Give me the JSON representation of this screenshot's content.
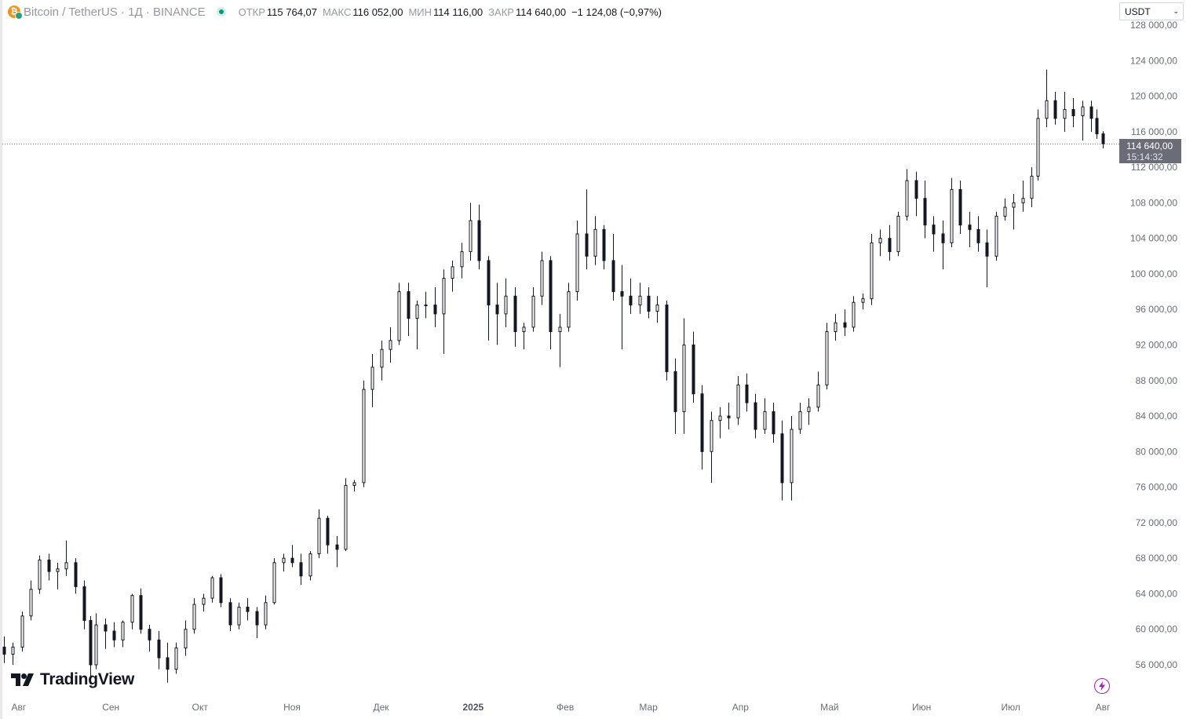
{
  "header": {
    "symbol_title": "Bitcoin / TetherUS · 1Д · BINANCE",
    "ohlc": [
      {
        "label": "ОТКР",
        "value": "115 764,07"
      },
      {
        "label": "МАКС",
        "value": "116 052,00"
      },
      {
        "label": "МИН",
        "value": "114 116,00"
      },
      {
        "label": "ЗАКР",
        "value": "114 640,00"
      }
    ],
    "change": "−1 124,08 (−0,97%)"
  },
  "currency": {
    "selected": "USDT"
  },
  "price_label": {
    "price": "114 640,00",
    "countdown": "15:14:32"
  },
  "logo": {
    "text": "TradingView"
  },
  "icons": {
    "symbol": "bitcoin-tether-icon",
    "status": "market-open-dot-icon",
    "dropdown": "chevron-down-icon",
    "logo": "tradingview-logo-icon",
    "lightning": "lightning-icon"
  },
  "colors": {
    "candle": "#131722",
    "background": "#ffffff",
    "axis_text": "#6a6d78",
    "price_label_bg": "#6a6d78",
    "lightning": "#9c27b0",
    "bitcoin": "#f7931a",
    "tether": "#26a17b",
    "status_green": "#089981"
  },
  "chart_data": {
    "type": "candlestick",
    "timeframe": "1D",
    "xlabel": "",
    "ylabel": "",
    "ylim": [
      54000,
      128000
    ],
    "y_ticks": [
      {
        "value": 56000,
        "label": "56 000,00"
      },
      {
        "value": 60000,
        "label": "60 000,00"
      },
      {
        "value": 64000,
        "label": "64 000,00"
      },
      {
        "value": 68000,
        "label": "68 000,00"
      },
      {
        "value": 72000,
        "label": "72 000,00"
      },
      {
        "value": 76000,
        "label": "76 000,00"
      },
      {
        "value": 80000,
        "label": "80 000,00"
      },
      {
        "value": 84000,
        "label": "84 000,00"
      },
      {
        "value": 88000,
        "label": "88 000,00"
      },
      {
        "value": 92000,
        "label": "92 000,00"
      },
      {
        "value": 96000,
        "label": "96 000,00"
      },
      {
        "value": 100000,
        "label": "100 000,00"
      },
      {
        "value": 104000,
        "label": "104 000,00"
      },
      {
        "value": 108000,
        "label": "108 000,00"
      },
      {
        "value": 112000,
        "label": "112 000,00"
      },
      {
        "value": 116000,
        "label": "116 000,00"
      },
      {
        "value": 120000,
        "label": "120 000,00"
      },
      {
        "value": 124000,
        "label": "124 000,00"
      },
      {
        "value": 128000,
        "label": "128 000,00"
      }
    ],
    "x_ticks": [
      {
        "day": 5,
        "label": "Авг"
      },
      {
        "day": 36,
        "label": "Сен"
      },
      {
        "day": 66,
        "label": "Окт"
      },
      {
        "day": 97,
        "label": "Ноя"
      },
      {
        "day": 127,
        "label": "Дек"
      },
      {
        "day": 158,
        "label": "2025",
        "bold": true
      },
      {
        "day": 189,
        "label": "Фев"
      },
      {
        "day": 217,
        "label": "Мар"
      },
      {
        "day": 248,
        "label": "Апр"
      },
      {
        "day": 278,
        "label": "Май"
      },
      {
        "day": 309,
        "label": "Июн"
      },
      {
        "day": 339,
        "label": "Июл"
      },
      {
        "day": 370,
        "label": "Авг"
      }
    ],
    "last_price": 114640,
    "last_day": 370,
    "candles": [
      {
        "day": 0,
        "o": 58000,
        "h": 59200,
        "l": 56200,
        "c": 57200
      },
      {
        "day": 3,
        "o": 57200,
        "h": 58500,
        "l": 56000,
        "c": 58000
      },
      {
        "day": 6,
        "o": 58000,
        "h": 62000,
        "l": 57500,
        "c": 61500
      },
      {
        "day": 9,
        "o": 61500,
        "h": 65500,
        "l": 61000,
        "c": 64500
      },
      {
        "day": 12,
        "o": 64500,
        "h": 68300,
        "l": 64000,
        "c": 67800
      },
      {
        "day": 15,
        "o": 67800,
        "h": 68500,
        "l": 65500,
        "c": 66500
      },
      {
        "day": 18,
        "o": 66500,
        "h": 67500,
        "l": 64500,
        "c": 66800
      },
      {
        "day": 21,
        "o": 66800,
        "h": 70000,
        "l": 66000,
        "c": 67500
      },
      {
        "day": 24,
        "o": 67500,
        "h": 68000,
        "l": 64000,
        "c": 64800
      },
      {
        "day": 27,
        "o": 64800,
        "h": 65500,
        "l": 60000,
        "c": 61000
      },
      {
        "day": 29,
        "o": 61000,
        "h": 61500,
        "l": 54500,
        "c": 56000
      },
      {
        "day": 31,
        "o": 56000,
        "h": 61800,
        "l": 55500,
        "c": 60500
      },
      {
        "day": 34,
        "o": 60500,
        "h": 61200,
        "l": 57800,
        "c": 59800
      },
      {
        "day": 37,
        "o": 59800,
        "h": 60800,
        "l": 58000,
        "c": 58800
      },
      {
        "day": 40,
        "o": 58800,
        "h": 61000,
        "l": 58000,
        "c": 60800
      },
      {
        "day": 43,
        "o": 60800,
        "h": 64000,
        "l": 60000,
        "c": 63800
      },
      {
        "day": 46,
        "o": 63800,
        "h": 64600,
        "l": 59500,
        "c": 60000
      },
      {
        "day": 49,
        "o": 60000,
        "h": 60500,
        "l": 57500,
        "c": 58800
      },
      {
        "day": 52,
        "o": 58800,
        "h": 59800,
        "l": 55500,
        "c": 56800
      },
      {
        "day": 55,
        "o": 56800,
        "h": 58500,
        "l": 54000,
        "c": 55500
      },
      {
        "day": 58,
        "o": 55500,
        "h": 58500,
        "l": 55000,
        "c": 57900
      },
      {
        "day": 61,
        "o": 57900,
        "h": 61000,
        "l": 57000,
        "c": 60000
      },
      {
        "day": 64,
        "o": 60000,
        "h": 63500,
        "l": 59500,
        "c": 62800
      },
      {
        "day": 67,
        "o": 62800,
        "h": 64000,
        "l": 62000,
        "c": 63500
      },
      {
        "day": 70,
        "o": 63500,
        "h": 66000,
        "l": 63000,
        "c": 65800
      },
      {
        "day": 73,
        "o": 65800,
        "h": 66200,
        "l": 62500,
        "c": 63000
      },
      {
        "day": 76,
        "o": 63000,
        "h": 63500,
        "l": 59800,
        "c": 60500
      },
      {
        "day": 79,
        "o": 60500,
        "h": 63000,
        "l": 60000,
        "c": 62500
      },
      {
        "day": 82,
        "o": 62500,
        "h": 63500,
        "l": 61000,
        "c": 62000
      },
      {
        "day": 85,
        "o": 62000,
        "h": 62500,
        "l": 59000,
        "c": 60500
      },
      {
        "day": 88,
        "o": 60500,
        "h": 63800,
        "l": 60000,
        "c": 63000
      },
      {
        "day": 91,
        "o": 63000,
        "h": 68000,
        "l": 62800,
        "c": 67500
      },
      {
        "day": 94,
        "o": 67500,
        "h": 68500,
        "l": 66500,
        "c": 68000
      },
      {
        "day": 97,
        "o": 68000,
        "h": 69500,
        "l": 67000,
        "c": 67500
      },
      {
        "day": 100,
        "o": 67500,
        "h": 68500,
        "l": 65000,
        "c": 66000
      },
      {
        "day": 103,
        "o": 66000,
        "h": 68800,
        "l": 65500,
        "c": 68500
      },
      {
        "day": 106,
        "o": 68500,
        "h": 73500,
        "l": 68000,
        "c": 72500
      },
      {
        "day": 109,
        "o": 72500,
        "h": 72800,
        "l": 68500,
        "c": 69500
      },
      {
        "day": 112,
        "o": 69500,
        "h": 70500,
        "l": 67000,
        "c": 69000
      },
      {
        "day": 115,
        "o": 69000,
        "h": 77000,
        "l": 68800,
        "c": 76200
      },
      {
        "day": 118,
        "o": 76200,
        "h": 76800,
        "l": 75500,
        "c": 76500
      },
      {
        "day": 121,
        "o": 76500,
        "h": 88000,
        "l": 76000,
        "c": 87000
      },
      {
        "day": 124,
        "o": 87000,
        "h": 91000,
        "l": 85000,
        "c": 89500
      },
      {
        "day": 127,
        "o": 89500,
        "h": 92500,
        "l": 88000,
        "c": 91500
      },
      {
        "day": 130,
        "o": 91500,
        "h": 94000,
        "l": 90000,
        "c": 92500
      },
      {
        "day": 133,
        "o": 92500,
        "h": 99000,
        "l": 92000,
        "c": 98000
      },
      {
        "day": 136,
        "o": 98000,
        "h": 99000,
        "l": 93000,
        "c": 95000
      },
      {
        "day": 139,
        "o": 95000,
        "h": 97000,
        "l": 91500,
        "c": 96500
      },
      {
        "day": 142,
        "o": 96500,
        "h": 98000,
        "l": 95000,
        "c": 96500
      },
      {
        "day": 145,
        "o": 96500,
        "h": 98500,
        "l": 94000,
        "c": 95500
      },
      {
        "day": 148,
        "o": 95500,
        "h": 100500,
        "l": 91000,
        "c": 99500
      },
      {
        "day": 151,
        "o": 99500,
        "h": 101500,
        "l": 98000,
        "c": 100800
      },
      {
        "day": 154,
        "o": 100800,
        "h": 103500,
        "l": 99500,
        "c": 102500
      },
      {
        "day": 157,
        "o": 102500,
        "h": 108000,
        "l": 101500,
        "c": 106000
      },
      {
        "day": 160,
        "o": 106000,
        "h": 107800,
        "l": 100500,
        "c": 101500
      },
      {
        "day": 163,
        "o": 101500,
        "h": 102000,
        "l": 92500,
        "c": 96500
      },
      {
        "day": 166,
        "o": 96500,
        "h": 99000,
        "l": 92000,
        "c": 95500
      },
      {
        "day": 169,
        "o": 95500,
        "h": 99500,
        "l": 94000,
        "c": 97500
      },
      {
        "day": 172,
        "o": 97500,
        "h": 98500,
        "l": 91800,
        "c": 93500
      },
      {
        "day": 175,
        "o": 93500,
        "h": 94500,
        "l": 91500,
        "c": 94000
      },
      {
        "day": 178,
        "o": 94000,
        "h": 98500,
        "l": 93500,
        "c": 97500
      },
      {
        "day": 181,
        "o": 97500,
        "h": 102500,
        "l": 96500,
        "c": 101500
      },
      {
        "day": 184,
        "o": 101500,
        "h": 102000,
        "l": 91500,
        "c": 93500
      },
      {
        "day": 187,
        "o": 93500,
        "h": 95500,
        "l": 89500,
        "c": 94000
      },
      {
        "day": 190,
        "o": 94000,
        "h": 99000,
        "l": 93500,
        "c": 98000
      },
      {
        "day": 193,
        "o": 98000,
        "h": 106000,
        "l": 97000,
        "c": 104500
      },
      {
        "day": 196,
        "o": 104500,
        "h": 109500,
        "l": 100500,
        "c": 102000
      },
      {
        "day": 199,
        "o": 102000,
        "h": 106500,
        "l": 101000,
        "c": 105000
      },
      {
        "day": 202,
        "o": 105000,
        "h": 105500,
        "l": 100500,
        "c": 101500
      },
      {
        "day": 205,
        "o": 101500,
        "h": 104500,
        "l": 97000,
        "c": 98000
      },
      {
        "day": 208,
        "o": 98000,
        "h": 101000,
        "l": 91500,
        "c": 97500
      },
      {
        "day": 211,
        "o": 97500,
        "h": 99500,
        "l": 95500,
        "c": 96500
      },
      {
        "day": 214,
        "o": 96500,
        "h": 99000,
        "l": 95500,
        "c": 97500
      },
      {
        "day": 217,
        "o": 97500,
        "h": 98500,
        "l": 95000,
        "c": 95800
      },
      {
        "day": 220,
        "o": 95800,
        "h": 97500,
        "l": 94500,
        "c": 96500
      },
      {
        "day": 223,
        "o": 96500,
        "h": 97000,
        "l": 88000,
        "c": 89000
      },
      {
        "day": 226,
        "o": 89000,
        "h": 90500,
        "l": 82000,
        "c": 84500
      },
      {
        "day": 229,
        "o": 84500,
        "h": 95000,
        "l": 82000,
        "c": 92000
      },
      {
        "day": 232,
        "o": 92000,
        "h": 93500,
        "l": 85500,
        "c": 86500
      },
      {
        "day": 235,
        "o": 86500,
        "h": 87500,
        "l": 78000,
        "c": 80000
      },
      {
        "day": 238,
        "o": 80000,
        "h": 84500,
        "l": 76500,
        "c": 83500
      },
      {
        "day": 241,
        "o": 83500,
        "h": 85000,
        "l": 81500,
        "c": 84000
      },
      {
        "day": 244,
        "o": 84000,
        "h": 85500,
        "l": 82500,
        "c": 83800
      },
      {
        "day": 247,
        "o": 83800,
        "h": 88500,
        "l": 83000,
        "c": 87500
      },
      {
        "day": 250,
        "o": 87500,
        "h": 88800,
        "l": 84500,
        "c": 85500
      },
      {
        "day": 253,
        "o": 85500,
        "h": 86500,
        "l": 81500,
        "c": 82500
      },
      {
        "day": 256,
        "o": 82500,
        "h": 86000,
        "l": 82000,
        "c": 84500
      },
      {
        "day": 259,
        "o": 84500,
        "h": 85500,
        "l": 81000,
        "c": 82000
      },
      {
        "day": 262,
        "o": 82000,
        "h": 83500,
        "l": 74500,
        "c": 76500
      },
      {
        "day": 265,
        "o": 76500,
        "h": 84000,
        "l": 74500,
        "c": 82500
      },
      {
        "day": 268,
        "o": 82500,
        "h": 85500,
        "l": 82000,
        "c": 84500
      },
      {
        "day": 271,
        "o": 84500,
        "h": 86000,
        "l": 83000,
        "c": 85000
      },
      {
        "day": 274,
        "o": 85000,
        "h": 89000,
        "l": 84500,
        "c": 87500
      },
      {
        "day": 277,
        "o": 87500,
        "h": 94500,
        "l": 87000,
        "c": 93500
      },
      {
        "day": 280,
        "o": 93500,
        "h": 95500,
        "l": 92500,
        "c": 94500
      },
      {
        "day": 283,
        "o": 94500,
        "h": 96000,
        "l": 93000,
        "c": 94000
      },
      {
        "day": 286,
        "o": 94000,
        "h": 97500,
        "l": 93500,
        "c": 96800
      },
      {
        "day": 289,
        "o": 96800,
        "h": 97800,
        "l": 96000,
        "c": 97200
      },
      {
        "day": 292,
        "o": 97200,
        "h": 104500,
        "l": 96500,
        "c": 103500
      },
      {
        "day": 295,
        "o": 103500,
        "h": 105000,
        "l": 102000,
        "c": 104000
      },
      {
        "day": 298,
        "o": 104000,
        "h": 105500,
        "l": 101500,
        "c": 102500
      },
      {
        "day": 301,
        "o": 102500,
        "h": 107000,
        "l": 102000,
        "c": 106500
      },
      {
        "day": 304,
        "o": 106500,
        "h": 111800,
        "l": 106000,
        "c": 110500
      },
      {
        "day": 307,
        "o": 110500,
        "h": 111500,
        "l": 106500,
        "c": 108500
      },
      {
        "day": 310,
        "o": 108500,
        "h": 110500,
        "l": 104000,
        "c": 105500
      },
      {
        "day": 313,
        "o": 105500,
        "h": 106500,
        "l": 102500,
        "c": 104500
      },
      {
        "day": 316,
        "o": 104500,
        "h": 106000,
        "l": 100500,
        "c": 103500
      },
      {
        "day": 319,
        "o": 103500,
        "h": 110800,
        "l": 103000,
        "c": 109500
      },
      {
        "day": 322,
        "o": 109500,
        "h": 110500,
        "l": 104500,
        "c": 105500
      },
      {
        "day": 325,
        "o": 105500,
        "h": 107000,
        "l": 103000,
        "c": 105000
      },
      {
        "day": 328,
        "o": 105000,
        "h": 106500,
        "l": 102500,
        "c": 103500
      },
      {
        "day": 331,
        "o": 103500,
        "h": 105000,
        "l": 98500,
        "c": 102000
      },
      {
        "day": 334,
        "o": 102000,
        "h": 107000,
        "l": 101500,
        "c": 106500
      },
      {
        "day": 337,
        "o": 106500,
        "h": 108500,
        "l": 106000,
        "c": 107500
      },
      {
        "day": 340,
        "o": 107500,
        "h": 109000,
        "l": 105000,
        "c": 108000
      },
      {
        "day": 343,
        "o": 108000,
        "h": 110500,
        "l": 107000,
        "c": 108500
      },
      {
        "day": 346,
        "o": 108500,
        "h": 112000,
        "l": 107500,
        "c": 111000
      },
      {
        "day": 348,
        "o": 111000,
        "h": 118500,
        "l": 110500,
        "c": 117500
      },
      {
        "day": 351,
        "o": 117500,
        "h": 123000,
        "l": 116500,
        "c": 119500
      },
      {
        "day": 354,
        "o": 119500,
        "h": 120500,
        "l": 116800,
        "c": 117500
      },
      {
        "day": 357,
        "o": 117500,
        "h": 120500,
        "l": 116000,
        "c": 118500
      },
      {
        "day": 360,
        "o": 118500,
        "h": 119800,
        "l": 116500,
        "c": 117800
      },
      {
        "day": 363,
        "o": 117800,
        "h": 119500,
        "l": 115000,
        "c": 118800
      },
      {
        "day": 366,
        "o": 118800,
        "h": 119500,
        "l": 116000,
        "c": 117500
      },
      {
        "day": 368,
        "o": 117500,
        "h": 118500,
        "l": 115200,
        "c": 115764
      },
      {
        "day": 370,
        "o": 115764,
        "h": 116052,
        "l": 114116,
        "c": 114640
      }
    ]
  }
}
